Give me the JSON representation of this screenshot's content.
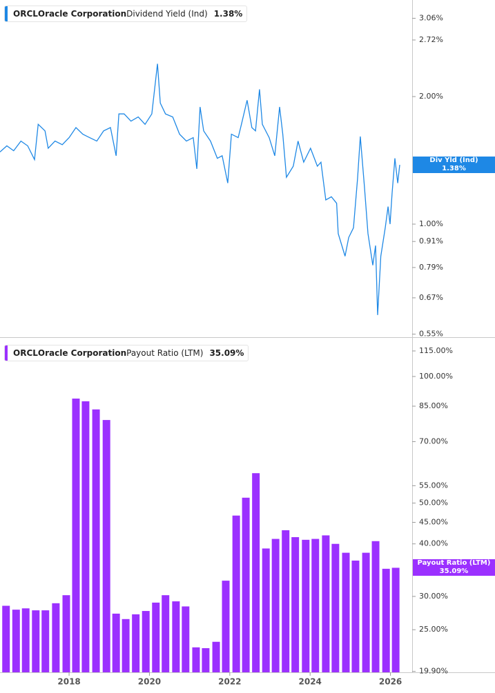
{
  "chart_data": [
    {
      "type": "line",
      "ticker": "ORCL",
      "company": "Oracle Corporation",
      "log_scale": true,
      "x": [
        2016.28,
        2016.45,
        2016.62,
        2016.8,
        2016.97,
        2017.14,
        2017.23,
        2017.4,
        2017.48,
        2017.65,
        2017.83,
        2018.0,
        2018.17,
        2018.34,
        2018.51,
        2018.69,
        2018.86,
        2019.03,
        2019.17,
        2019.24,
        2019.37,
        2019.54,
        2019.72,
        2019.89,
        2020.06,
        2020.2,
        2020.27,
        2020.4,
        2020.58,
        2020.75,
        2020.92,
        2021.09,
        2021.18,
        2021.26,
        2021.35,
        2021.52,
        2021.69,
        2021.81,
        2021.95,
        2022.04,
        2022.21,
        2022.29,
        2022.43,
        2022.55,
        2022.64,
        2022.74,
        2022.81,
        2022.98,
        2023.12,
        2023.24,
        2023.32,
        2023.41,
        2023.58,
        2023.7,
        2023.84,
        2024.01,
        2024.18,
        2024.27,
        2024.39,
        2024.53,
        2024.66,
        2024.7,
        2024.87,
        2024.96,
        2025.08,
        2025.18,
        2025.25,
        2025.35,
        2025.44,
        2025.56,
        2025.63,
        2025.68,
        2025.76,
        2025.87,
        2025.94,
        2025.99,
        2026.04,
        2026.11,
        2026.18,
        2026.23
      ],
      "series": [
        {
          "name": "Dividend Yield (Ind)",
          "short_name": "Div Yld (Ind)",
          "color": "#1e88e5",
          "last_label": "1.38%",
          "values": [
            1.48,
            1.53,
            1.49,
            1.57,
            1.53,
            1.42,
            1.72,
            1.66,
            1.51,
            1.57,
            1.54,
            1.6,
            1.69,
            1.63,
            1.6,
            1.57,
            1.66,
            1.69,
            1.45,
            1.82,
            1.82,
            1.75,
            1.79,
            1.72,
            1.82,
            2.39,
            1.93,
            1.82,
            1.79,
            1.63,
            1.57,
            1.6,
            1.35,
            1.89,
            1.66,
            1.57,
            1.43,
            1.45,
            1.25,
            1.63,
            1.6,
            1.72,
            1.96,
            1.69,
            1.66,
            2.08,
            1.72,
            1.6,
            1.45,
            1.89,
            1.63,
            1.29,
            1.37,
            1.57,
            1.4,
            1.51,
            1.37,
            1.4,
            1.14,
            1.16,
            1.12,
            0.95,
            0.84,
            0.93,
            0.98,
            1.28,
            1.61,
            1.23,
            0.95,
            0.8,
            0.89,
            0.61,
            0.84,
            0.98,
            1.1,
            1.0,
            1.18,
            1.43,
            1.25,
            1.38
          ]
        }
      ],
      "xlim": [
        2016.28,
        2026.54
      ],
      "ylim": [
        0.545,
        3.38
      ],
      "yticks": [
        {
          "value": 3.06,
          "label": "3.06%"
        },
        {
          "value": 2.72,
          "label": "2.72%"
        },
        {
          "value": 2.0,
          "label": "2.00%"
        },
        {
          "value": 1.0,
          "label": "1.00%"
        },
        {
          "value": 0.91,
          "label": "0.91%"
        },
        {
          "value": 0.79,
          "label": "0.79%"
        },
        {
          "value": 0.67,
          "label": "0.67%"
        },
        {
          "value": 0.55,
          "label": "0.55%"
        }
      ]
    },
    {
      "type": "bar",
      "ticker": "ORCL",
      "company": "Oracle Corporation",
      "log_scale": true,
      "x": [
        2016.43,
        2016.68,
        2016.92,
        2017.17,
        2017.41,
        2017.67,
        2017.93,
        2018.17,
        2018.41,
        2018.67,
        2018.93,
        2019.17,
        2019.41,
        2019.66,
        2019.91,
        2020.16,
        2020.4,
        2020.66,
        2020.9,
        2021.16,
        2021.4,
        2021.66,
        2021.9,
        2022.16,
        2022.4,
        2022.65,
        2022.9,
        2023.14,
        2023.39,
        2023.63,
        2023.89,
        2024.13,
        2024.39,
        2024.63,
        2024.89,
        2025.13,
        2025.39,
        2025.63,
        2025.89,
        2026.13
      ],
      "series": [
        {
          "name": "Payout Ratio (LTM)",
          "short_name": "Payout Ratio (LTM)",
          "color": "#9b30ff",
          "last_label": "35.09%",
          "values": [
            28.5,
            27.9,
            28.1,
            27.8,
            27.8,
            28.9,
            30.2,
            88.6,
            87.3,
            83.5,
            78.8,
            27.3,
            26.5,
            27.2,
            27.7,
            29.0,
            30.2,
            29.2,
            28.4,
            22.7,
            22.6,
            23.4,
            32.7,
            46.7,
            51.5,
            58.9,
            39.0,
            41.1,
            43.1,
            41.5,
            40.9,
            41.1,
            41.9,
            40.0,
            38.1,
            36.5,
            38.1,
            40.6,
            34.9,
            35.09
          ]
        }
      ],
      "xlim": [
        2016.28,
        2026.54
      ],
      "ylim": [
        19.8,
        122.6
      ],
      "xticks": [
        2018,
        2020,
        2022,
        2024,
        2026
      ],
      "yticks": [
        {
          "value": 115,
          "label": "115.00%"
        },
        {
          "value": 100,
          "label": "100.00%"
        },
        {
          "value": 85,
          "label": "85.00%"
        },
        {
          "value": 70,
          "label": "70.00%"
        },
        {
          "value": 55,
          "label": "55.00%"
        },
        {
          "value": 50,
          "label": "50.00%"
        },
        {
          "value": 45,
          "label": "45.00%"
        },
        {
          "value": 40,
          "label": "40.00%"
        },
        {
          "value": 30,
          "label": "30.00%"
        },
        {
          "value": 25,
          "label": "25.00%"
        },
        {
          "value": 19.9,
          "label": "19.90%"
        }
      ]
    }
  ]
}
